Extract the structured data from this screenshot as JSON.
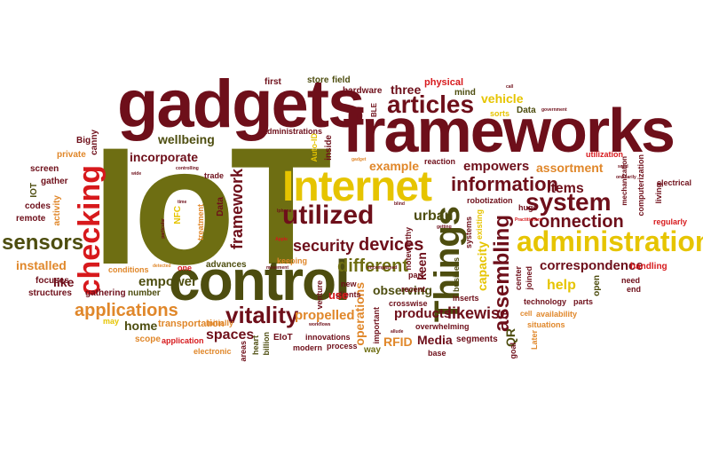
{
  "palette": {
    "maroon": "#6e0f1a",
    "olive": "#6e6e12",
    "yellow": "#e6c400",
    "orange": "#e0872a",
    "red": "#d7191c",
    "dark-olive": "#4d4d0f",
    "brown": "#8a3a12"
  },
  "words": {
    "iot": "IoT",
    "gadgets": "gadgets",
    "frameworks": "frameworks",
    "control": "control",
    "internet": "Internet",
    "administration": "administration",
    "things": "Things",
    "checking": "checking",
    "utilized": "utilized",
    "articles": "articles",
    "system": "system",
    "information": "information",
    "sensors": "sensors",
    "vitality": "vitality",
    "applications": "applications",
    "assembling": "assembling",
    "framework": "framework",
    "different": "different",
    "devices": "devices",
    "security": "security",
    "connection": "connection",
    "correspondence": "correspondence",
    "wellbeing": "wellbeing",
    "incorporate": "incorporate",
    "empower": "empower",
    "spaces": "spaces",
    "propelled": "propelled",
    "likewise": "likewise",
    "products": "products",
    "observing": "observing",
    "items": "items",
    "empowers": "empowers",
    "example": "example",
    "urban": "urban",
    "help": "help",
    "assortment": "assortment",
    "installed": "installed",
    "home": "home",
    "media": "Media",
    "rfid": "RFID",
    "capacity": "capacity",
    "keen": "keen",
    "operations": "operations",
    "qr": "QR",
    "three": "three",
    "vehicle": "vehicle",
    "physical": "physical",
    "store": "store",
    "field": "field",
    "first": "first",
    "hardware": "hardware",
    "mind": "mind",
    "data": "Data",
    "sorts": "sorts",
    "big": "Big",
    "private": "private",
    "canny": "canny",
    "screen": "screen",
    "gather": "gather",
    "iot-small": "IOT",
    "codes": "codes",
    "remote": "remote",
    "focuses": "focuses",
    "structures": "structures",
    "like": "like",
    "gathering": "gathering",
    "may": "may",
    "scope": "scope",
    "application": "application",
    "electronic": "electronic",
    "transportation": "transportation",
    "initially": "initially",
    "areas": "areas",
    "heart": "heart",
    "billion": "billion",
    "eiot": "EIoT",
    "modern": "modern",
    "innovations": "innovations",
    "process": "process",
    "way": "way",
    "base": "base",
    "segments": "segments",
    "overwhelming": "overwhelming",
    "crosswise": "crosswise",
    "recent": "recent",
    "inserts": "inserts",
    "parts": "parts",
    "situations": "situations",
    "availability": "availability",
    "cell": "cell",
    "later": "Later",
    "handling": "handling",
    "need": "need",
    "end": "end",
    "regularly": "regularly",
    "living": "living",
    "electrical": "electrical",
    "computerization": "computerization",
    "mechanization": "mechanization",
    "utilization": "utilization",
    "technology": "technology",
    "open": "open",
    "joined": "joined",
    "center": "center",
    "goal": "goal",
    "business": "business",
    "important": "important",
    "part": "part",
    "noteworthy": "noteworthy",
    "systems": "systems",
    "existing": "existing",
    "robotization": "robotization",
    "reaction": "reaction",
    "inside": "inside",
    "auto-id": "Auto-ID",
    "clients": "clients",
    "new": "new",
    "use": "use",
    "venture": "venture",
    "keeping": "keeping",
    "advances": "advances",
    "one": "one",
    "conditions": "conditions",
    "number": "number",
    "nfc": "NFC",
    "treatment": "treatment",
    "trade": "trade",
    "administrations": "administrations",
    "activity": "activity",
    "ble": "BLE",
    "huge": "huge",
    "government": "government",
    "controlling": "controlling",
    "wide": "wide",
    "particular": "particular",
    "time": "time",
    "iphone": "Iphone",
    "apple": "Apple",
    "movement": "movement",
    "workflows": "workflows",
    "allude": "allude",
    "encompassed": "encompassed",
    "detected": "detected",
    "practitioners": "Practitioners",
    "blind": "blind",
    "getting": "getting",
    "call": "call",
    "gadget": "gadget",
    "ordinarily": "ordinarily",
    "solid": "solid"
  }
}
